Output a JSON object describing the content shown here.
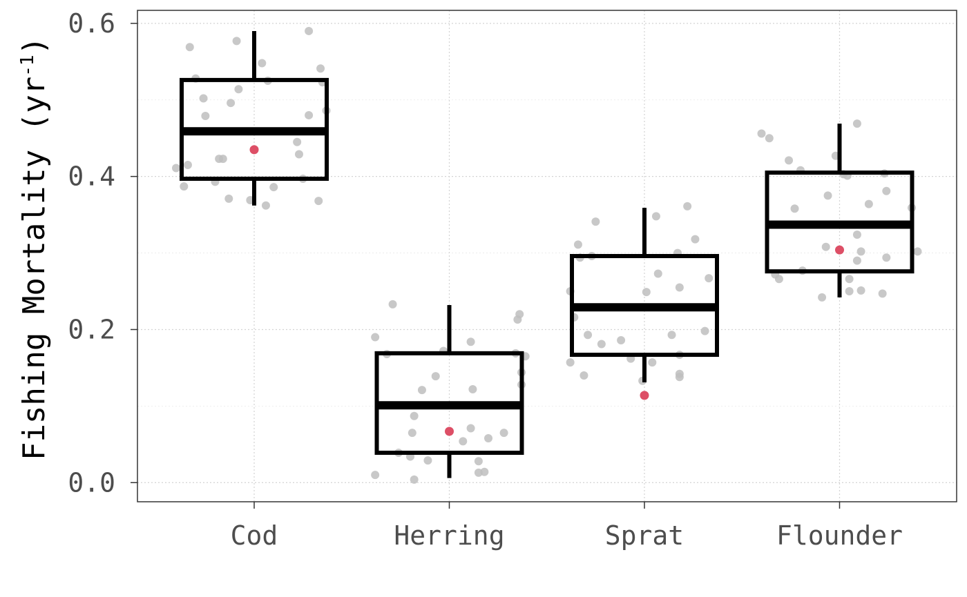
{
  "chart_data": {
    "type": "box",
    "title": "",
    "xlabel": "",
    "ylabel_main": "Fishing Mortality (yr",
    "ylabel_sup": "-1",
    "ylabel_close": ")",
    "ylim": [
      -0.025,
      0.617
    ],
    "yticks": [
      0.0,
      0.2,
      0.4,
      0.6
    ],
    "ytick_labels": [
      "0.0",
      "0.2",
      "0.4",
      "0.6"
    ],
    "grid": true,
    "categories": [
      "Cod",
      "Herring",
      "Sprat",
      "Flounder"
    ],
    "boxes": [
      {
        "name": "Cod",
        "whisker_low": 0.362,
        "q1": 0.397,
        "median": 0.459,
        "q3": 0.526,
        "whisker_high": 0.59,
        "highlight": 0.435
      },
      {
        "name": "Herring",
        "whisker_low": 0.006,
        "q1": 0.039,
        "median": 0.101,
        "q3": 0.169,
        "whisker_high": 0.232,
        "highlight": 0.067
      },
      {
        "name": "Sprat",
        "whisker_low": 0.131,
        "q1": 0.167,
        "median": 0.229,
        "q3": 0.296,
        "whisker_high": 0.359,
        "highlight": 0.114
      },
      {
        "name": "Flounder",
        "whisker_low": 0.242,
        "q1": 0.276,
        "median": 0.337,
        "q3": 0.405,
        "whisker_high": 0.469,
        "highlight": 0.304
      }
    ],
    "points": [
      [
        [
          -0.4,
          0.411
        ],
        [
          -0.36,
          0.387
        ],
        [
          -0.34,
          0.415
        ],
        [
          -0.33,
          0.569
        ],
        [
          -0.3,
          0.528
        ],
        [
          -0.26,
          0.502
        ],
        [
          -0.25,
          0.479
        ],
        [
          -0.2,
          0.393
        ],
        [
          -0.18,
          0.423
        ],
        [
          -0.16,
          0.423
        ],
        [
          -0.13,
          0.371
        ],
        [
          -0.12,
          0.496
        ],
        [
          -0.09,
          0.577
        ],
        [
          -0.08,
          0.514
        ],
        [
          -0.02,
          0.369
        ],
        [
          0.04,
          0.548
        ],
        [
          0.06,
          0.362
        ],
        [
          0.07,
          0.525
        ],
        [
          0.1,
          0.386
        ],
        [
          0.22,
          0.445
        ],
        [
          0.23,
          0.429
        ],
        [
          0.25,
          0.397
        ],
        [
          0.28,
          0.48
        ],
        [
          0.28,
          0.59
        ],
        [
          0.33,
          0.368
        ],
        [
          0.34,
          0.541
        ],
        [
          0.35,
          0.523
        ],
        [
          0.37,
          0.486
        ]
      ],
      [
        [
          -0.38,
          0.01
        ],
        [
          -0.38,
          0.19
        ],
        [
          -0.32,
          0.168
        ],
        [
          -0.29,
          0.233
        ],
        [
          -0.26,
          0.039
        ],
        [
          -0.2,
          0.034
        ],
        [
          -0.19,
          0.065
        ],
        [
          -0.18,
          0.087
        ],
        [
          -0.18,
          0.004
        ],
        [
          -0.14,
          0.121
        ],
        [
          -0.11,
          0.029
        ],
        [
          -0.07,
          0.139
        ],
        [
          -0.03,
          0.172
        ],
        [
          0.07,
          0.054
        ],
        [
          0.11,
          0.071
        ],
        [
          0.11,
          0.184
        ],
        [
          0.12,
          0.122
        ],
        [
          0.15,
          0.028
        ],
        [
          0.15,
          0.013
        ],
        [
          0.18,
          0.014
        ],
        [
          0.2,
          0.058
        ],
        [
          0.28,
          0.065
        ],
        [
          0.34,
          0.169
        ],
        [
          0.35,
          0.213
        ],
        [
          0.36,
          0.22
        ],
        [
          0.37,
          0.128
        ],
        [
          0.37,
          0.144
        ],
        [
          0.39,
          0.165
        ]
      ],
      [
        [
          -0.38,
          0.157
        ],
        [
          -0.38,
          0.25
        ],
        [
          -0.36,
          0.216
        ],
        [
          -0.34,
          0.311
        ],
        [
          -0.33,
          0.294
        ],
        [
          -0.31,
          0.14
        ],
        [
          -0.29,
          0.193
        ],
        [
          -0.27,
          0.296
        ],
        [
          -0.25,
          0.341
        ],
        [
          -0.22,
          0.181
        ],
        [
          -0.12,
          0.186
        ],
        [
          -0.07,
          0.162
        ],
        [
          -0.01,
          0.133
        ],
        [
          0.01,
          0.249
        ],
        [
          0.04,
          0.157
        ],
        [
          0.06,
          0.348
        ],
        [
          0.07,
          0.273
        ],
        [
          0.14,
          0.193
        ],
        [
          0.17,
          0.3
        ],
        [
          0.18,
          0.255
        ],
        [
          0.18,
          0.167
        ],
        [
          0.18,
          0.142
        ],
        [
          0.18,
          0.138
        ],
        [
          0.22,
          0.361
        ],
        [
          0.26,
          0.318
        ],
        [
          0.31,
          0.198
        ],
        [
          0.33,
          0.267
        ]
      ],
      [
        [
          -0.4,
          0.456
        ],
        [
          -0.36,
          0.45
        ],
        [
          -0.33,
          0.272
        ],
        [
          -0.31,
          0.266
        ],
        [
          -0.26,
          0.421
        ],
        [
          -0.23,
          0.358
        ],
        [
          -0.2,
          0.408
        ],
        [
          -0.19,
          0.277
        ],
        [
          -0.09,
          0.242
        ],
        [
          -0.07,
          0.308
        ],
        [
          -0.06,
          0.375
        ],
        [
          -0.02,
          0.427
        ],
        [
          0.02,
          0.403
        ],
        [
          0.04,
          0.401
        ],
        [
          0.05,
          0.266
        ],
        [
          0.05,
          0.25
        ],
        [
          0.09,
          0.29
        ],
        [
          0.09,
          0.324
        ],
        [
          0.09,
          0.469
        ],
        [
          0.11,
          0.251
        ],
        [
          0.11,
          0.302
        ],
        [
          0.15,
          0.364
        ],
        [
          0.22,
          0.247
        ],
        [
          0.23,
          0.404
        ],
        [
          0.24,
          0.381
        ],
        [
          0.24,
          0.294
        ],
        [
          0.37,
          0.359
        ],
        [
          0.4,
          0.302
        ]
      ]
    ],
    "colors": {
      "box": "#000000",
      "point": "#bebebe",
      "highlight": "#dd4f66",
      "grid": "#d3d3d3",
      "frame": "#333333"
    }
  }
}
